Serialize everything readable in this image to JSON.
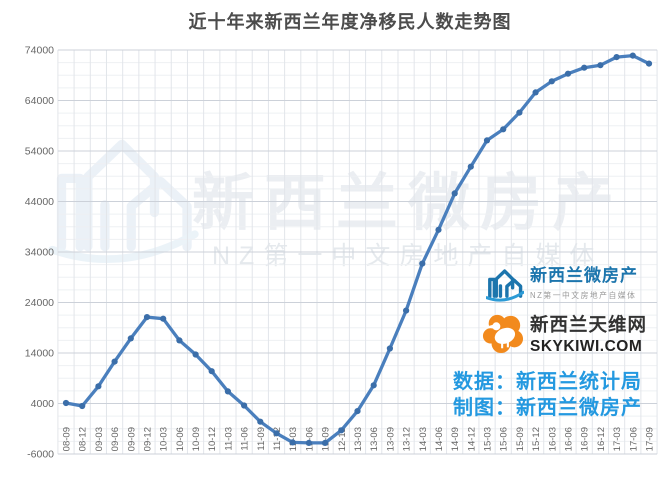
{
  "title": "近十年来新西兰年度净移民人数走势图",
  "chart_data": {
    "type": "line",
    "x": [
      "08-09",
      "08-12",
      "09-03",
      "09-06",
      "09-09",
      "09-12",
      "10-03",
      "10-06",
      "10-09",
      "10-12",
      "11-03",
      "11-06",
      "11-09",
      "11-12",
      "12-03",
      "12-06",
      "12-09",
      "12-12",
      "13-03",
      "13-06",
      "13-09",
      "13-12",
      "14-03",
      "14-06",
      "14-09",
      "14-12",
      "15-03",
      "15-06",
      "15-09",
      "15-12",
      "16-03",
      "16-06",
      "16-09",
      "16-12",
      "17-03",
      "17-06",
      "17-09"
    ],
    "series": [
      {
        "name": "年度净移民人数",
        "values": [
          4100,
          3500,
          7400,
          12300,
          16900,
          21100,
          20800,
          16500,
          13700,
          10400,
          6400,
          3600,
          400,
          -1900,
          -3700,
          -3800,
          -3800,
          -1300,
          2500,
          7600,
          14900,
          22400,
          31700,
          38400,
          45600,
          50900,
          56100,
          58300,
          61600,
          65600,
          67800,
          69300,
          70500,
          71000,
          72600,
          72900,
          71300
        ]
      }
    ],
    "ylim": [
      -6000,
      74000
    ],
    "yticks": [
      74000,
      64000,
      54000,
      44000,
      34000,
      24000,
      14000,
      4000,
      -6000
    ],
    "ytick_minor_interval": 2500,
    "grid": "on",
    "legend": "none",
    "line_color": "#4a7fbd",
    "marker_color": "#3b6ea9"
  },
  "watermark": {
    "text": "新西兰微房产",
    "subtitle": "NZ第一中文房地产自媒体",
    "icon": "building-logo-icon"
  },
  "logos": [
    {
      "icon": "building-logo-icon",
      "title": "新西兰微房产",
      "subtitle": "NZ第一中文房地产自媒体",
      "accent_color": "#1c75ad"
    },
    {
      "icon": "kiwi-bird-icon",
      "title": "新西兰天维网",
      "site": "SKYKIWI.COM",
      "accent_color": "#f28a1d"
    }
  ],
  "credits": {
    "data_source": "数据：新西兰统计局",
    "chart_by": "制图：新西兰微房产"
  }
}
